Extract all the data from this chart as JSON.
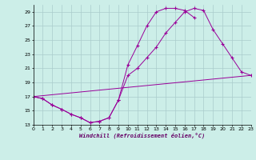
{
  "xlabel": "Windchill (Refroidissement éolien,°C)",
  "bg_color": "#cceee8",
  "line_color": "#990099",
  "grid_color": "#aacccc",
  "xmin": 0,
  "xmax": 23,
  "ymin": 13,
  "ymax": 30,
  "yticks": [
    13,
    15,
    17,
    19,
    21,
    23,
    25,
    27,
    29
  ],
  "xticks": [
    0,
    1,
    2,
    3,
    4,
    5,
    6,
    7,
    8,
    9,
    10,
    11,
    12,
    13,
    14,
    15,
    16,
    17,
    18,
    19,
    20,
    21,
    22,
    23
  ],
  "series1_x": [
    0,
    1,
    2,
    3,
    4,
    5,
    6,
    7,
    8,
    9,
    10,
    11,
    12,
    13,
    14,
    15,
    16,
    17
  ],
  "series1_y": [
    17.0,
    16.7,
    15.8,
    15.2,
    14.5,
    14.0,
    13.3,
    13.5,
    14.0,
    16.5,
    21.5,
    24.2,
    27.0,
    29.0,
    29.5,
    29.5,
    29.2,
    28.2
  ],
  "series2_x": [
    0,
    1,
    2,
    3,
    4,
    5,
    6,
    7,
    8,
    9,
    10,
    11,
    12,
    13,
    14,
    15,
    16,
    17,
    18,
    19,
    20,
    21,
    22,
    23
  ],
  "series2_y": [
    17.0,
    16.7,
    15.8,
    15.2,
    14.5,
    14.0,
    13.3,
    13.5,
    14.0,
    16.5,
    20.0,
    21.0,
    22.5,
    24.0,
    26.0,
    27.5,
    29.0,
    29.5,
    29.2,
    26.5,
    24.5,
    22.5,
    20.5,
    20.0
  ],
  "series3_x": [
    0,
    23
  ],
  "series3_y": [
    17.0,
    20.0
  ]
}
